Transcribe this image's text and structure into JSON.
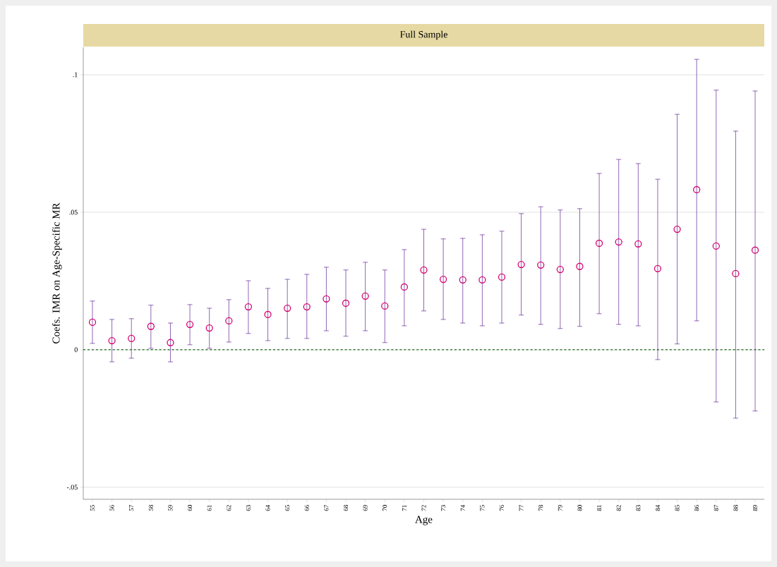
{
  "chart_data": {
    "type": "scatter",
    "title": "Full Sample",
    "xlabel": "Age",
    "ylabel": "Coefs. IMR on Age-Specific MR",
    "x": [
      55,
      56,
      57,
      58,
      59,
      60,
      61,
      62,
      63,
      64,
      65,
      66,
      67,
      68,
      69,
      70,
      71,
      72,
      73,
      74,
      75,
      76,
      77,
      78,
      79,
      80,
      81,
      82,
      83,
      84,
      85,
      86,
      87,
      88,
      89
    ],
    "series": [
      {
        "color": "#d6006f",
        "values": [
          0.01,
          0.0033,
          0.0041,
          0.0085,
          0.0026,
          0.0092,
          0.0079,
          0.0105,
          0.0156,
          0.0128,
          0.0151,
          0.0156,
          0.0185,
          0.0169,
          0.0195,
          0.0159,
          0.0228,
          0.029,
          0.0256,
          0.0254,
          0.0254,
          0.0264,
          0.031,
          0.0308,
          0.0292,
          0.0303,
          0.0387,
          0.0392,
          0.0385,
          0.0295,
          0.0438,
          0.0582,
          0.0377,
          0.0277,
          0.0362
        ],
        "errors": [
          [
            0.0023,
            0.0177
          ],
          [
            -0.0044,
            0.011
          ],
          [
            -0.0031,
            0.0113
          ],
          [
            0.0005,
            0.0162
          ],
          [
            -0.0044,
            0.0097
          ],
          [
            0.0018,
            0.0164
          ],
          [
            0.0005,
            0.0151
          ],
          [
            0.0028,
            0.0182
          ],
          [
            0.0059,
            0.0251
          ],
          [
            0.0033,
            0.0223
          ],
          [
            0.0041,
            0.0256
          ],
          [
            0.0041,
            0.0274
          ],
          [
            0.0069,
            0.03
          ],
          [
            0.0049,
            0.029
          ],
          [
            0.0069,
            0.0318
          ],
          [
            0.0026,
            0.029
          ],
          [
            0.0087,
            0.0364
          ],
          [
            0.0141,
            0.0438
          ],
          [
            0.011,
            0.0403
          ],
          [
            0.0097,
            0.0405
          ],
          [
            0.0087,
            0.0418
          ],
          [
            0.0097,
            0.0431
          ],
          [
            0.0126,
            0.0495
          ],
          [
            0.0092,
            0.052
          ],
          [
            0.0077,
            0.0508
          ],
          [
            0.0085,
            0.0513
          ],
          [
            0.0131,
            0.0641
          ],
          [
            0.0092,
            0.0692
          ],
          [
            0.0087,
            0.0677
          ],
          [
            -0.0036,
            0.062
          ],
          [
            0.0021,
            0.0856
          ],
          [
            0.0105,
            0.1056
          ],
          [
            -0.019,
            0.0944
          ],
          [
            -0.0249,
            0.0795
          ],
          [
            -0.0223,
            0.0941
          ]
        ]
      }
    ],
    "xlim": [
      54.53,
      89.47
    ],
    "ylim": [
      -0.0544,
      0.11
    ],
    "xticks": [
      55,
      56,
      57,
      58,
      59,
      60,
      61,
      62,
      63,
      64,
      65,
      66,
      67,
      68,
      69,
      70,
      71,
      72,
      73,
      74,
      75,
      76,
      77,
      78,
      79,
      80,
      81,
      82,
      83,
      84,
      85,
      86,
      87,
      88,
      89
    ],
    "yticks": [
      {
        "value": -0.05,
        "label": "-.05"
      },
      {
        "value": 0,
        "label": "0"
      },
      {
        "value": 0.05,
        "label": ".05"
      },
      {
        "value": 0.1,
        "label": ".1"
      }
    ],
    "ref_lines": [
      {
        "axis": "y",
        "value": 0,
        "color": "#1a6b1a",
        "line_style": "dashed"
      }
    ],
    "grid": "y",
    "marker": "circle"
  }
}
